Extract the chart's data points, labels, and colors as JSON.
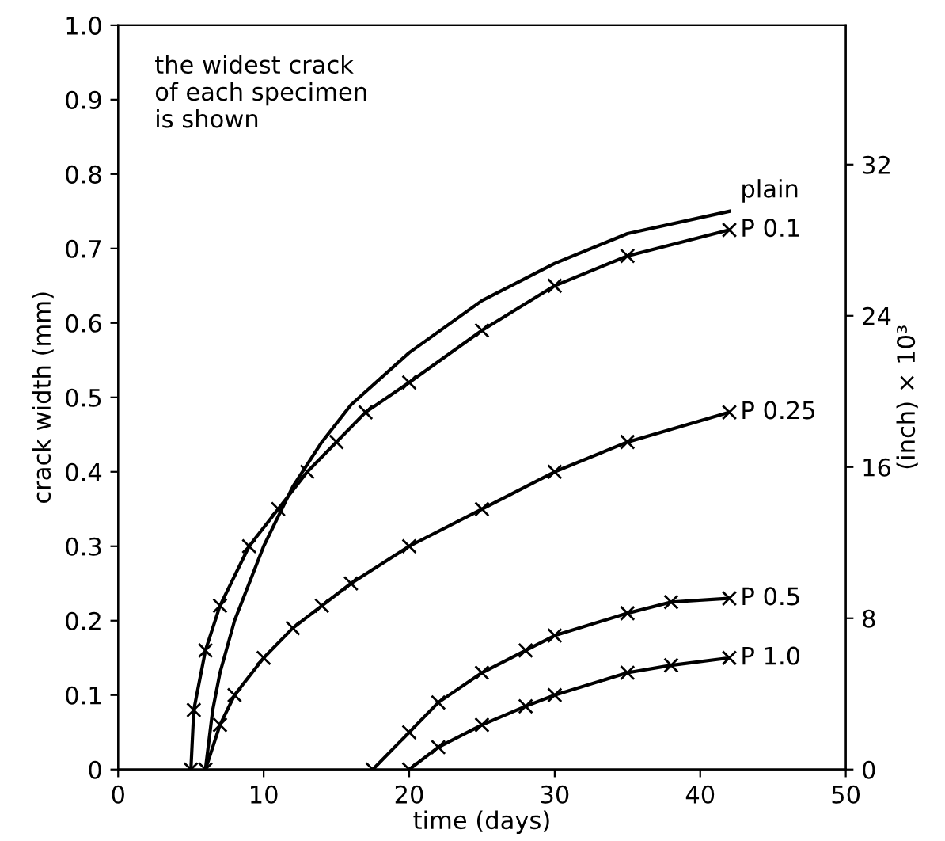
{
  "chart_data": {
    "type": "line",
    "xlabel": "time (days)",
    "ylabel": "crack width (mm)",
    "y2label": "(inch) × 10³",
    "annotations": [
      "the widest crack\nof each specimen\nis shown"
    ],
    "xlim": [
      0,
      50
    ],
    "xticks": [
      0,
      10,
      20,
      30,
      40,
      50
    ],
    "ylim": [
      0,
      1.0
    ],
    "yticks": [
      0,
      0.1,
      0.2,
      0.3,
      0.4,
      0.5,
      0.6,
      0.7,
      0.8,
      0.9,
      {
        "value": 1.0,
        "label": "1.0"
      }
    ],
    "y2lim": [
      0,
      39.37
    ],
    "y2ticks": [
      0,
      8,
      16,
      24,
      32
    ],
    "grid": false,
    "legend": false,
    "line_style": "solid",
    "series": [
      {
        "name": "plain",
        "color": "#000000",
        "marker": "none",
        "x": [
          6,
          6.5,
          7,
          8,
          10,
          12,
          14,
          16,
          20,
          25,
          30,
          35,
          42
        ],
        "values": [
          0,
          0.08,
          0.13,
          0.2,
          0.3,
          0.38,
          0.44,
          0.49,
          0.56,
          0.63,
          0.68,
          0.72,
          0.75
        ]
      },
      {
        "name": "P 0.1",
        "color": "#000000",
        "marker": "cross",
        "x": [
          5,
          5.2,
          6,
          7,
          9,
          11,
          13,
          15,
          17,
          20,
          25,
          30,
          35,
          42
        ],
        "values": [
          0,
          0.08,
          0.16,
          0.22,
          0.3,
          0.35,
          0.4,
          0.44,
          0.48,
          0.52,
          0.59,
          0.65,
          0.69,
          0.725
        ]
      },
      {
        "name": "P 0.25",
        "color": "#000000",
        "marker": "cross",
        "x": [
          6,
          7,
          8,
          10,
          12,
          14,
          16,
          20,
          25,
          30,
          35,
          42
        ],
        "values": [
          0,
          0.06,
          0.1,
          0.15,
          0.19,
          0.22,
          0.25,
          0.3,
          0.35,
          0.4,
          0.44,
          0.48
        ]
      },
      {
        "name": "P 0.5",
        "color": "#000000",
        "marker": "cross",
        "x": [
          17.5,
          20,
          22,
          25,
          28,
          30,
          35,
          38,
          42
        ],
        "values": [
          0,
          0.05,
          0.09,
          0.13,
          0.16,
          0.18,
          0.21,
          0.225,
          0.23
        ]
      },
      {
        "name": "P 1.0",
        "color": "#000000",
        "marker": "cross",
        "x": [
          20,
          22,
          25,
          28,
          30,
          35,
          38,
          42
        ],
        "values": [
          0,
          0.03,
          0.06,
          0.085,
          0.1,
          0.13,
          0.14,
          0.15
        ]
      }
    ]
  }
}
